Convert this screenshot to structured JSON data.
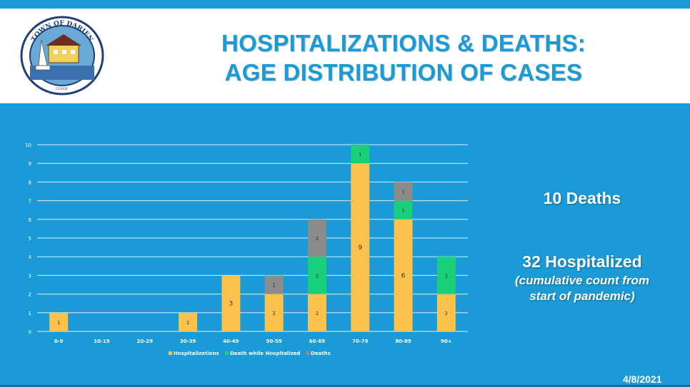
{
  "title": {
    "line1": "HOSPITALIZATIONS & DEATHS:",
    "line2": "AGE DISTRIBUTION OF CASES"
  },
  "logo": {
    "text_top": "TOWN OF DARIEN",
    "text_bottom": "CONN."
  },
  "stats": {
    "deaths": "10 Deaths",
    "hospitalized": "32 Hospitalized",
    "note_line1": "(cumulative count from",
    "note_line2": "start of pandemic)"
  },
  "date": "4/8/2021",
  "colors": {
    "background": "#1a9bd7",
    "title": "#1a9bd7",
    "hospitalizations": "#fcc24c",
    "death_while_hospitalized": "#19d07a",
    "deaths": "#8c8c8c"
  },
  "chart_data": {
    "type": "bar",
    "stacked": true,
    "categories": [
      "0-9",
      "10-19",
      "20-29",
      "30-39",
      "40-49",
      "50-59",
      "60-69",
      "70-79",
      "80-89",
      "90+"
    ],
    "series": [
      {
        "name": "Hospitalizations",
        "color": "#fcc24c",
        "values": [
          1,
          0,
          0,
          1,
          3,
          2,
          2,
          9,
          6,
          2
        ]
      },
      {
        "name": "Death while Hospitalized",
        "color": "#19d07a",
        "values": [
          0,
          0,
          0,
          0,
          0,
          0,
          2,
          1,
          1,
          2
        ]
      },
      {
        "name": "Deaths",
        "color": "#8c8c8c",
        "values": [
          0,
          0,
          0,
          0,
          0,
          1,
          2,
          0,
          1,
          0
        ]
      }
    ],
    "ylim": [
      0,
      10
    ],
    "yticks": [
      0,
      1,
      2,
      3,
      4,
      5,
      6,
      7,
      8,
      9,
      10
    ],
    "grid": true,
    "legend": "bottom"
  }
}
